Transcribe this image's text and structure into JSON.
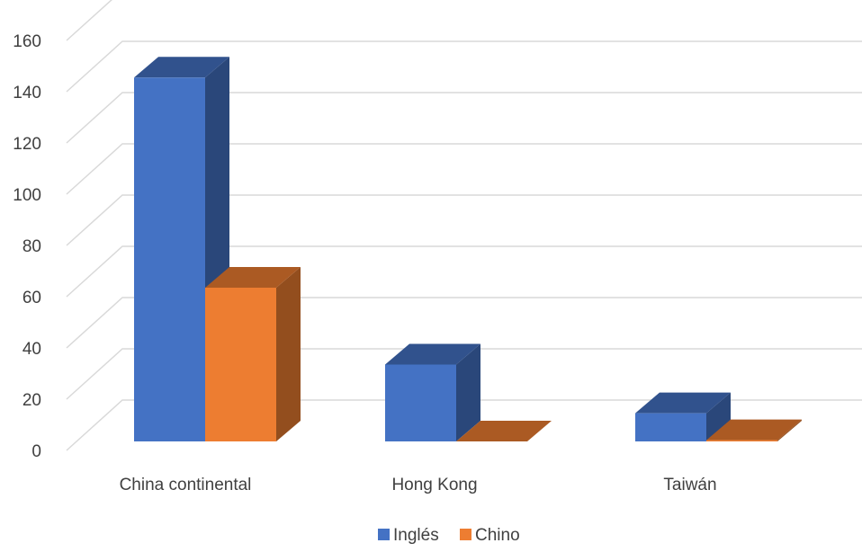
{
  "chart_data": {
    "type": "bar",
    "style": "3d-clustered-column",
    "title": "",
    "xlabel": "",
    "ylabel": "",
    "categories": [
      "China continental",
      "Hong Kong",
      "Taiwán"
    ],
    "series": [
      {
        "name": "Inglés",
        "values": [
          142,
          30,
          11
        ],
        "color": "#4472C4"
      },
      {
        "name": "Chino",
        "values": [
          60,
          0,
          0.5
        ],
        "color": "#ED7D31"
      }
    ],
    "ylim": [
      0,
      160
    ],
    "yticks": [
      "0",
      "20",
      "40",
      "60",
      "80",
      "100",
      "120",
      "140",
      "160"
    ],
    "grid": true,
    "legend_position": "bottom"
  },
  "colors": {
    "gridline": "#D9D9D9",
    "text": "#404040"
  }
}
